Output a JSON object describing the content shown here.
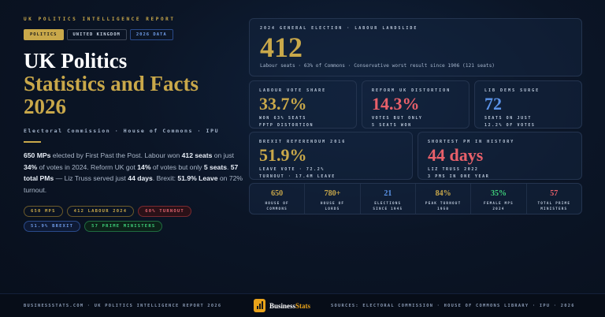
{
  "header": {
    "kicker": "UK POLITICS INTELLIGENCE REPORT",
    "tags": [
      "POLITICS",
      "UNITED KINGDOM",
      "2026 DATA"
    ],
    "title_line1": "UK Politics",
    "title_line2": "Statistics and Facts",
    "title_line3": "2026",
    "subtitle": "Electoral Commission · House of Commons · IPU"
  },
  "summary": {
    "p1": "650 MPs",
    "p2": " elected by First Past the Post. Labour won ",
    "p3": "412 seats",
    "p4": " on just ",
    "p5": "34%",
    "p6": " of votes in 2024. Reform UK got ",
    "p7": "14%",
    "p8": " of votes but only ",
    "p9": "5 seats",
    "p10": ". ",
    "p11": "57 total PMs",
    "p12": " — Liz Truss served just ",
    "p13": "44 days",
    "p14": ". Brexit: ",
    "p15": "51.9% Leave",
    "p16": " on 72% turnout."
  },
  "pills": [
    "650 MPS",
    "412 LABOUR 2024",
    "60% TURNOUT",
    "51.9% BREXIT",
    "57 PRIME MINISTERS"
  ],
  "hero": {
    "label": "2024 GENERAL ELECTION · LABOUR LANDSLIDE",
    "value": "412",
    "caption": "Labour seats · 63% of Commons · Conservative worst result since 1906 (121 seats)"
  },
  "cards": [
    {
      "label": "LABOUR VOTE SHARE",
      "value": "33.7%",
      "l1": "WON 63% SEATS",
      "l2": "FPTP DISTORTION",
      "color": "#c9a84a"
    },
    {
      "label": "REFORM UK DISTORTION",
      "value": "14.3%",
      "l1": "VOTES BUT ONLY",
      "l2": "5 SEATS WON",
      "color": "#e8606a"
    },
    {
      "label": "LIB DEMS SURGE",
      "value": "72",
      "l1": "SEATS ON JUST",
      "l2": "12.2% OF VOTES",
      "color": "#5b93e8"
    },
    {
      "label": "BREXIT REFERENDUM 2016",
      "value": "51.9%",
      "l1": "LEAVE VOTE · 72.2%",
      "l2": "TURNOUT · 17.4M LEAVE",
      "color": "#c9a84a"
    },
    {
      "label": "SHORTEST PM IN HISTORY",
      "value": "44 days",
      "l1": "LIZ TRUSS 2022",
      "l2": "3 PMS IN ONE YEAR",
      "color": "#e8606a"
    }
  ],
  "strip": [
    {
      "value": "650",
      "l1": "HOUSE OF",
      "l2": "COMMONS",
      "color": "#c9a84a"
    },
    {
      "value": "780+",
      "l1": "HOUSE OF",
      "l2": "LORDS",
      "color": "#c9a84a"
    },
    {
      "value": "21",
      "l1": "ELECTIONS",
      "l2": "SINCE 1945",
      "color": "#5b93e8"
    },
    {
      "value": "84%",
      "l1": "PEAK TURNOUT",
      "l2": "1950",
      "color": "#c9a84a"
    },
    {
      "value": "35%",
      "l1": "FEMALE MPS",
      "l2": "2024",
      "color": "#3fcf7a"
    },
    {
      "value": "57",
      "l1": "TOTAL PRIME",
      "l2": "MINISTERS",
      "color": "#e8606a"
    }
  ],
  "footer": {
    "left": "BUSINESSSTATS.COM · UK POLITICS INTELLIGENCE REPORT 2026",
    "logo_a": "Business",
    "logo_b": "Stats",
    "right": "SOURCES: ELECTORAL COMMISSION · HOUSE OF COMMONS LIBRARY · IPU · 2026"
  }
}
